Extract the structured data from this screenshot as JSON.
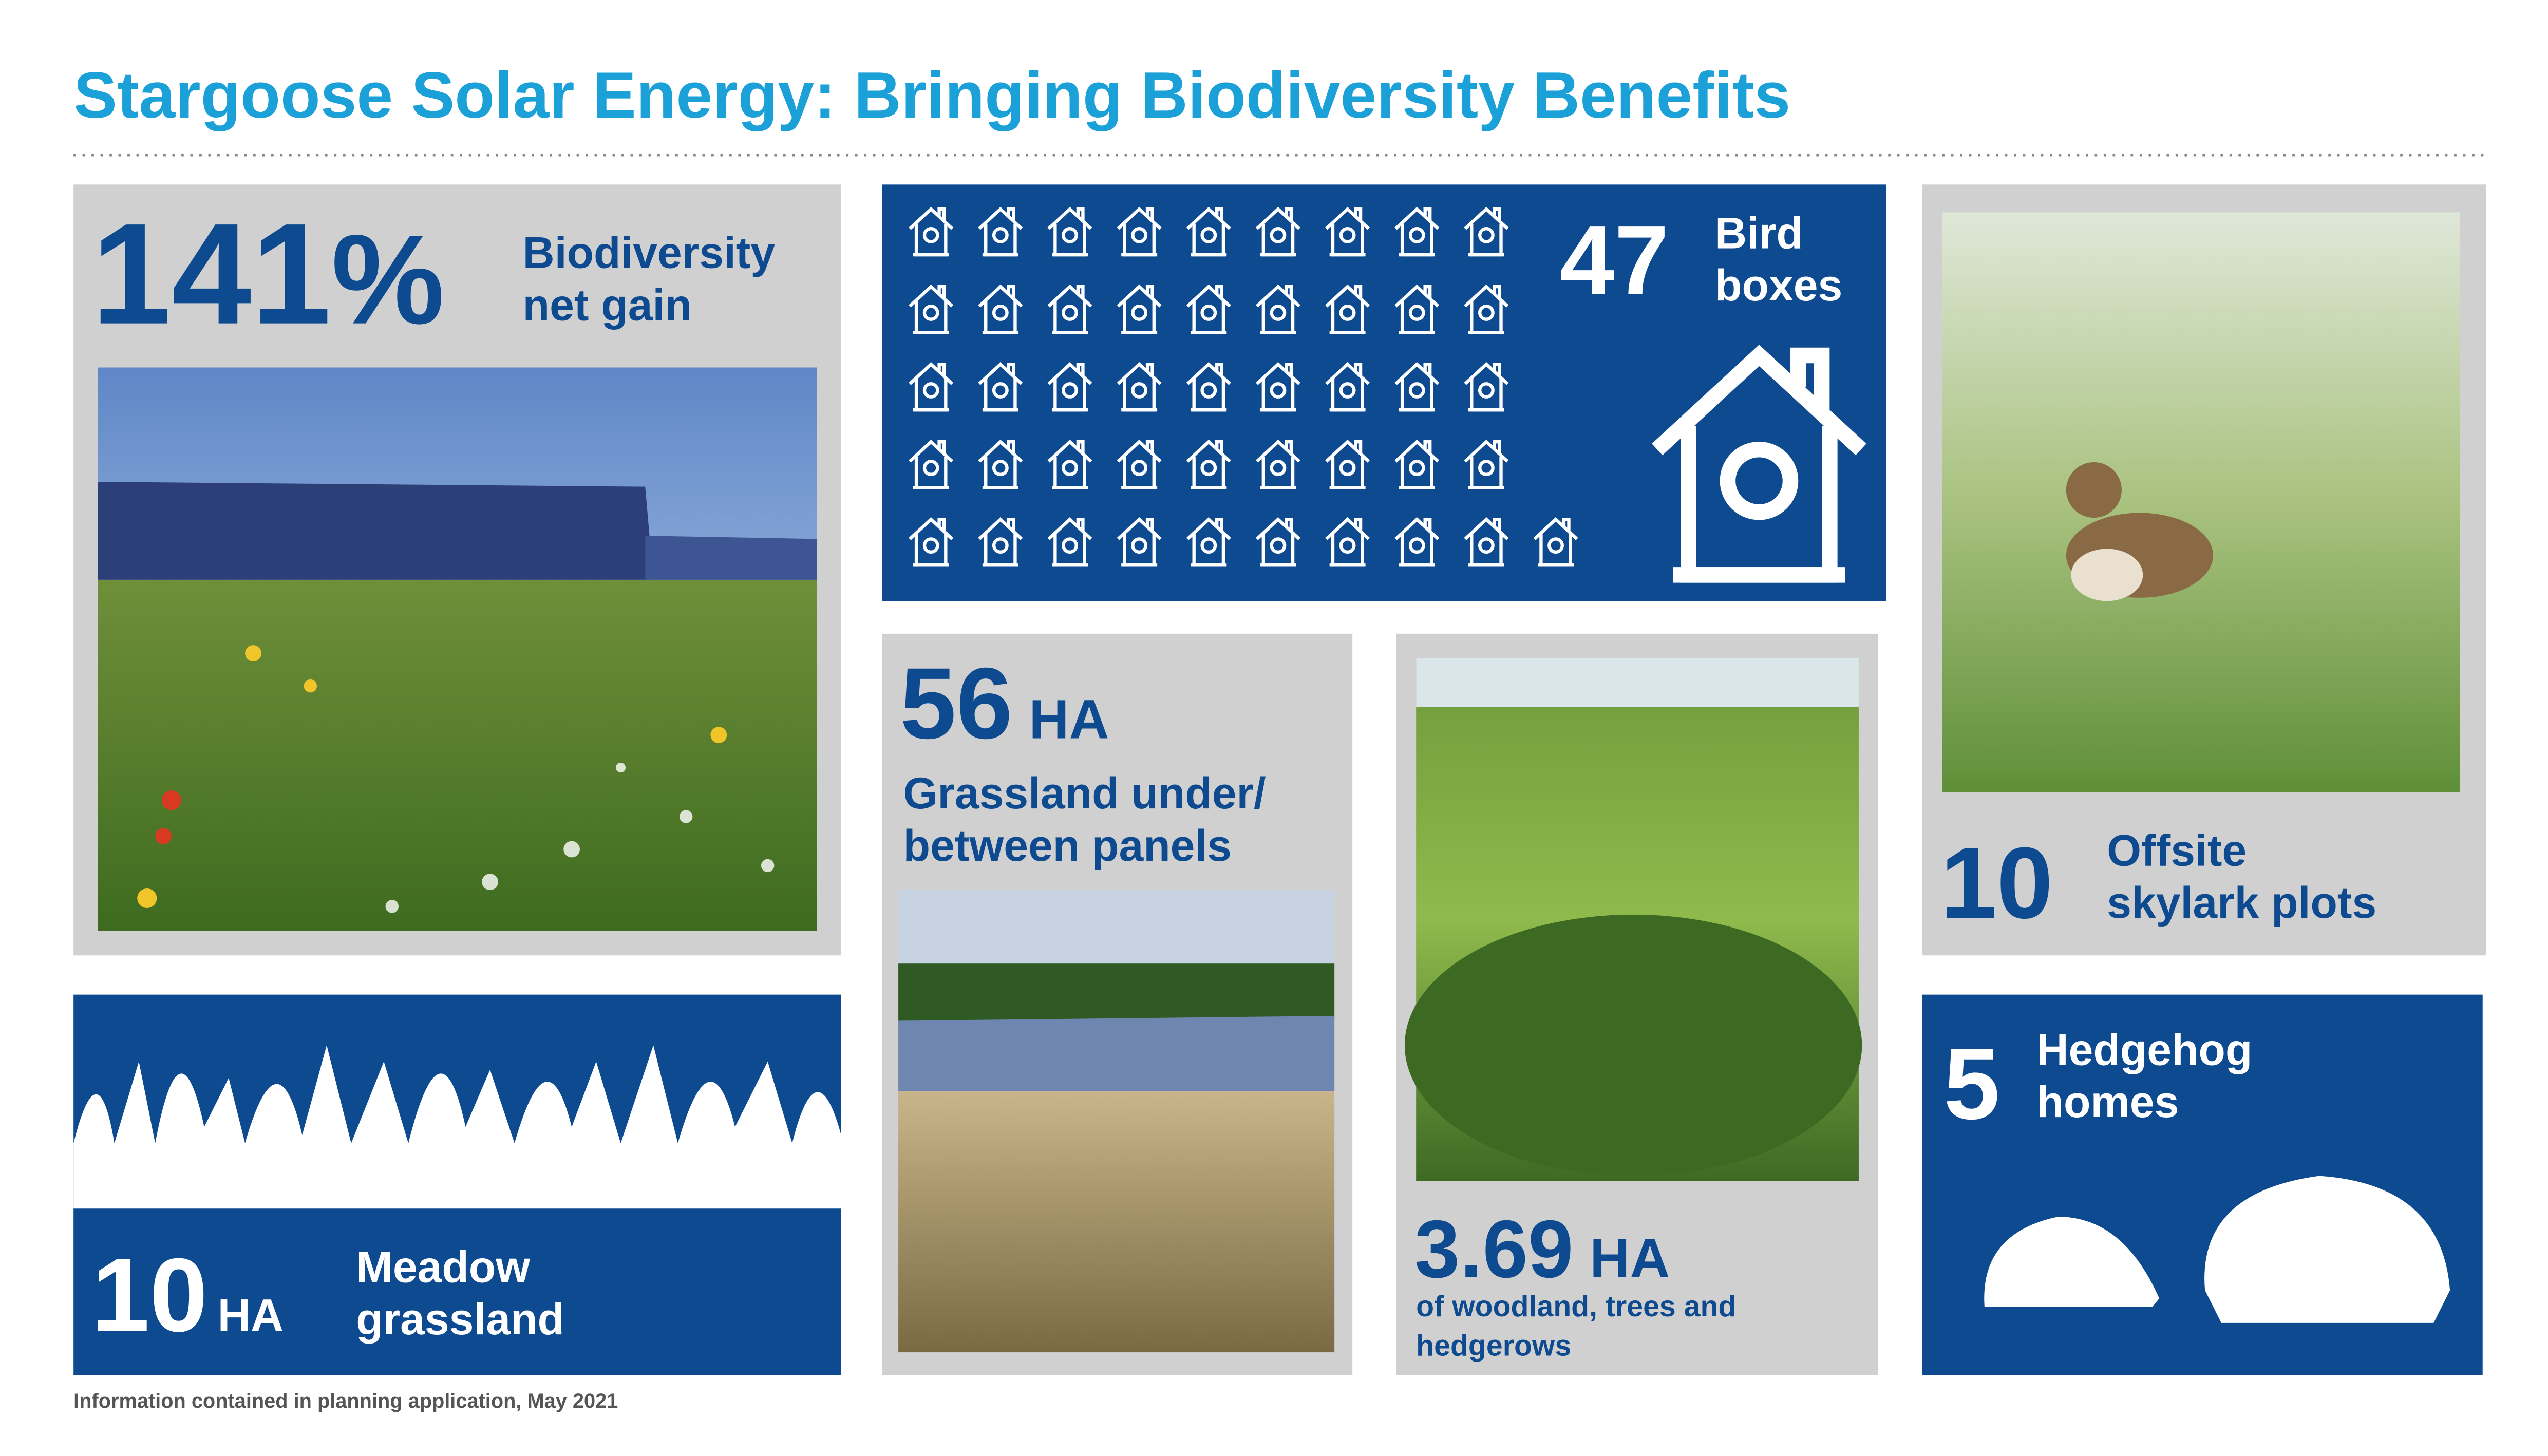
{
  "title": "Stargoose Solar Energy: Bringing Biodiversity Benefits",
  "net_gain": {
    "value": 141,
    "unit": "%",
    "label": [
      "Biodiversity",
      "net gain"
    ]
  },
  "bird_boxes": {
    "value": 47,
    "label": [
      "Bird",
      "boxes"
    ]
  },
  "grassland_panels": {
    "value": 56,
    "unit": "HA",
    "label": [
      "Grassland under/",
      "between panels"
    ]
  },
  "woodland": {
    "value": 3.69,
    "unit": "HA",
    "label": [
      "of woodland, trees and",
      "hedgerows"
    ]
  },
  "skylark_plots": {
    "value": 10,
    "label": [
      "Offsite",
      "skylark plots"
    ]
  },
  "hedgehog_homes": {
    "value": 5,
    "label": [
      "Hedgehog",
      "homes"
    ]
  },
  "meadow": {
    "value": 10,
    "unit": "HA",
    "label": [
      "Meadow",
      "grassland"
    ]
  },
  "footer": "Information contained in planning application, May 2021"
}
